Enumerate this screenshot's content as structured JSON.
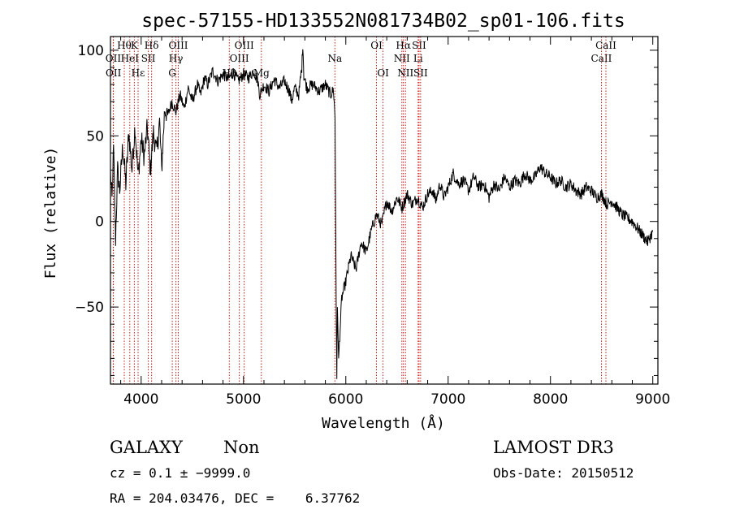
{
  "chart_data": {
    "type": "line",
    "title": "spec-57155-HD133552N081734B02_sp01-106.fits",
    "xlabel": "Wavelength (Å)",
    "ylabel": "Flux (relative)",
    "xlim": [
      3700,
      9050
    ],
    "ylim": [
      -95,
      108
    ],
    "x_ticks": [
      4000,
      5000,
      6000,
      7000,
      8000,
      9000
    ],
    "y_ticks": [
      -50,
      0,
      50,
      100
    ],
    "x_tick_labels": [
      "4000",
      "5000",
      "6000",
      "7000",
      "8000",
      "9000"
    ],
    "y_tick_labels": [
      "−50",
      "0",
      "50",
      "100"
    ],
    "series": [
      {
        "color": "#000000",
        "anchors": [
          [
            3700,
            28
          ],
          [
            3715,
            12
          ],
          [
            3730,
            42
          ],
          [
            3750,
            -10
          ],
          [
            3770,
            30
          ],
          [
            3790,
            18
          ],
          [
            3820,
            44
          ],
          [
            3850,
            22
          ],
          [
            3880,
            52
          ],
          [
            3910,
            30
          ],
          [
            3940,
            56
          ],
          [
            3970,
            26
          ],
          [
            4000,
            48
          ],
          [
            4030,
            38
          ],
          [
            4060,
            55
          ],
          [
            4090,
            30
          ],
          [
            4120,
            52
          ],
          [
            4150,
            40
          ],
          [
            4180,
            58
          ],
          [
            4200,
            30
          ],
          [
            4230,
            66
          ],
          [
            4260,
            62
          ],
          [
            4300,
            70
          ],
          [
            4340,
            64
          ],
          [
            4380,
            74
          ],
          [
            4420,
            66
          ],
          [
            4460,
            78
          ],
          [
            4500,
            70
          ],
          [
            4550,
            80
          ],
          [
            4580,
            74
          ],
          [
            4620,
            84
          ],
          [
            4650,
            80
          ],
          [
            4700,
            88
          ],
          [
            4750,
            82
          ],
          [
            4800,
            86
          ],
          [
            4850,
            83
          ],
          [
            4900,
            87
          ],
          [
            4950,
            82
          ],
          [
            5000,
            86
          ],
          [
            5050,
            84
          ],
          [
            5100,
            88
          ],
          [
            5140,
            82
          ],
          [
            5160,
            74
          ],
          [
            5200,
            80
          ],
          [
            5250,
            76
          ],
          [
            5300,
            83
          ],
          [
            5350,
            78
          ],
          [
            5400,
            82
          ],
          [
            5450,
            76
          ],
          [
            5470,
            70
          ],
          [
            5500,
            78
          ],
          [
            5540,
            74
          ],
          [
            5570,
            90
          ],
          [
            5580,
            104
          ],
          [
            5590,
            85
          ],
          [
            5620,
            78
          ],
          [
            5680,
            80
          ],
          [
            5740,
            76
          ],
          [
            5800,
            80
          ],
          [
            5850,
            74
          ],
          [
            5880,
            77
          ],
          [
            5895,
            60
          ],
          [
            5905,
            -40
          ],
          [
            5912,
            -92
          ],
          [
            5918,
            -50
          ],
          [
            5930,
            -80
          ],
          [
            5960,
            -45
          ],
          [
            6000,
            -35
          ],
          [
            6050,
            -20
          ],
          [
            6100,
            -28
          ],
          [
            6150,
            -12
          ],
          [
            6200,
            -18
          ],
          [
            6250,
            -5
          ],
          [
            6300,
            4
          ],
          [
            6350,
            -2
          ],
          [
            6400,
            12
          ],
          [
            6450,
            6
          ],
          [
            6500,
            14
          ],
          [
            6550,
            8
          ],
          [
            6600,
            16
          ],
          [
            6650,
            10
          ],
          [
            6700,
            14
          ],
          [
            6750,
            8
          ],
          [
            6800,
            16
          ],
          [
            6850,
            18
          ],
          [
            6880,
            12
          ],
          [
            6920,
            22
          ],
          [
            6960,
            14
          ],
          [
            7000,
            20
          ],
          [
            7050,
            28
          ],
          [
            7100,
            22
          ],
          [
            7150,
            24
          ],
          [
            7200,
            18
          ],
          [
            7250,
            26
          ],
          [
            7300,
            20
          ],
          [
            7350,
            22
          ],
          [
            7400,
            14
          ],
          [
            7450,
            22
          ],
          [
            7500,
            18
          ],
          [
            7550,
            26
          ],
          [
            7600,
            20
          ],
          [
            7650,
            24
          ],
          [
            7700,
            22
          ],
          [
            7750,
            28
          ],
          [
            7800,
            24
          ],
          [
            7850,
            26
          ],
          [
            7900,
            32
          ],
          [
            7950,
            28
          ],
          [
            8000,
            26
          ],
          [
            8050,
            22
          ],
          [
            8100,
            24
          ],
          [
            8150,
            20
          ],
          [
            8200,
            22
          ],
          [
            8250,
            18
          ],
          [
            8300,
            16
          ],
          [
            8350,
            20
          ],
          [
            8400,
            18
          ],
          [
            8450,
            14
          ],
          [
            8500,
            16
          ],
          [
            8550,
            10
          ],
          [
            8600,
            12
          ],
          [
            8650,
            8
          ],
          [
            8700,
            4
          ],
          [
            8750,
            2
          ],
          [
            8800,
            0
          ],
          [
            8850,
            -4
          ],
          [
            8900,
            -8
          ],
          [
            8950,
            -12
          ],
          [
            9000,
            -6
          ]
        ]
      }
    ],
    "lines": [
      {
        "x": 3727,
        "label": "OII",
        "row": 1
      },
      {
        "x": 3729,
        "label": "OII",
        "row": 2
      },
      {
        "x": 3835,
        "label": "Hθ",
        "row": 0
      },
      {
        "x": 3889,
        "label": "HeI",
        "row": 1
      },
      {
        "x": 3933,
        "label": "K",
        "row": 0
      },
      {
        "x": 3970,
        "label": "Hε",
        "row": 2
      },
      {
        "x": 4070,
        "label": "SII",
        "row": 1
      },
      {
        "x": 4102,
        "label": "Hδ",
        "row": 0
      },
      {
        "x": 4304,
        "label": "G",
        "row": 2
      },
      {
        "x": 4340,
        "label": "Hγ",
        "row": 1
      },
      {
        "x": 4363,
        "label": "OIII",
        "row": 0
      },
      {
        "x": 4861,
        "label": "Hβ",
        "row": 2
      },
      {
        "x": 4959,
        "label": "OIII",
        "row": 1
      },
      {
        "x": 5007,
        "label": "OIII",
        "row": 0
      },
      {
        "x": 5175,
        "label": "Mg",
        "row": 2
      },
      {
        "x": 5893,
        "label": "Na",
        "row": 1
      },
      {
        "x": 6300,
        "label": "OI",
        "row": 0
      },
      {
        "x": 6364,
        "label": "OI",
        "row": 2
      },
      {
        "x": 6548,
        "label": "NII",
        "row": 1
      },
      {
        "x": 6563,
        "label": "Hα",
        "row": 0
      },
      {
        "x": 6583,
        "label": "NII",
        "row": 2
      },
      {
        "x": 6707,
        "label": "Li",
        "row": 1
      },
      {
        "x": 6716,
        "label": "SII",
        "row": 0
      },
      {
        "x": 6731,
        "label": "SII",
        "row": 2
      },
      {
        "x": 8498,
        "label": "CaII",
        "row": 1
      },
      {
        "x": 8542,
        "label": "CaII",
        "row": 0
      }
    ],
    "line_color": "#c00000"
  },
  "info": {
    "class": "GALAXY",
    "subclass": "Non",
    "survey": "LAMOST DR3",
    "cz": "cz = 0.1 ± −9999.0",
    "obs_date": "Obs-Date: 20150512",
    "radec": "RA = 204.03476, DEC =    6.37762"
  }
}
